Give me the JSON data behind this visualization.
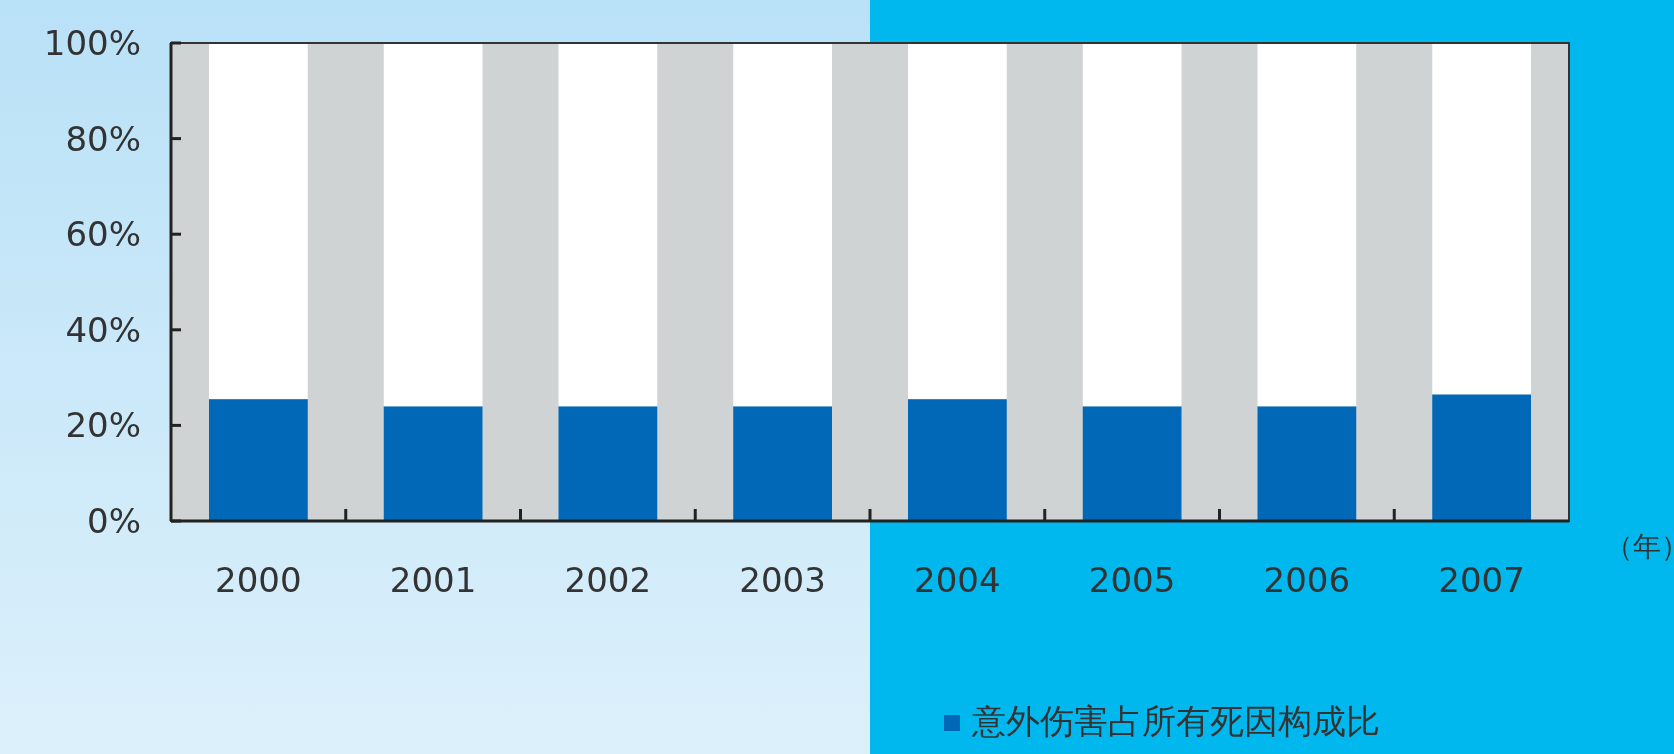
{
  "chart_data": {
    "type": "bar",
    "stacked": true,
    "xlabel": "（年）",
    "categories": [
      "2000",
      "2001",
      "2002",
      "2003",
      "2004",
      "2005",
      "2006",
      "2007"
    ],
    "series": [
      {
        "name": "意外伤害占所有死因构成比",
        "color": "#0068b7",
        "values": [
          25.5,
          24,
          24,
          24,
          25.5,
          24,
          24,
          26.5
        ]
      },
      {
        "color": "#ffffff",
        "values": [
          74.5,
          76,
          76,
          76,
          74.5,
          76,
          76,
          73.5
        ]
      }
    ],
    "ylim": [
      0,
      100
    ],
    "yticks": [
      {
        "value": 0,
        "label": "0%"
      },
      {
        "value": 20,
        "label": "20%"
      },
      {
        "value": 40,
        "label": "40%"
      },
      {
        "value": 60,
        "label": "60%"
      },
      {
        "value": 80,
        "label": "80%"
      },
      {
        "value": 100,
        "label": "100%"
      }
    ],
    "grid": false,
    "legend": "bottom right"
  }
}
